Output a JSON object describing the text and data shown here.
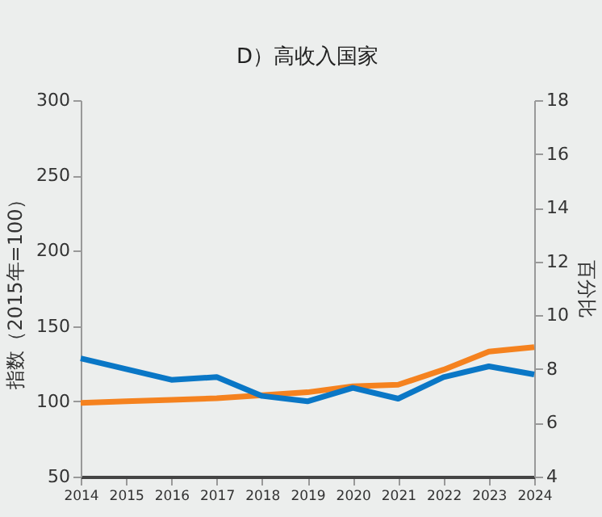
{
  "chart_data": {
    "type": "line",
    "title": "D）高收入国家",
    "ylabel": "指数（2015年=100）",
    "y2label": "百分比",
    "x": [
      2014,
      2015,
      2016,
      2017,
      2018,
      2019,
      2020,
      2021,
      2022,
      2023,
      2024
    ],
    "series": [
      {
        "color": "#f5821f",
        "values": [
          99,
          100,
          101,
          102,
          104,
          106,
          110,
          111,
          121,
          133,
          136
        ]
      },
      {
        "color": "#0a77c6",
        "axis": "y2",
        "values": [
          8.4,
          8.0,
          7.6,
          7.7,
          7.0,
          6.8,
          7.3,
          6.9,
          7.7,
          8.1,
          7.8
        ]
      }
    ],
    "xlim": [
      2014,
      2024
    ],
    "xticks": [
      2014,
      2015,
      2016,
      2017,
      2018,
      2019,
      2020,
      2021,
      2022,
      2023,
      2024
    ],
    "ylim": [
      50,
      300
    ],
    "yticks": [
      50,
      100,
      150,
      200,
      250,
      300
    ],
    "y2lim": [
      4,
      18
    ],
    "y2ticks": [
      4,
      6,
      8,
      10,
      12,
      14,
      16,
      18
    ],
    "grid": false,
    "marker": "none",
    "line_style": "solid"
  }
}
